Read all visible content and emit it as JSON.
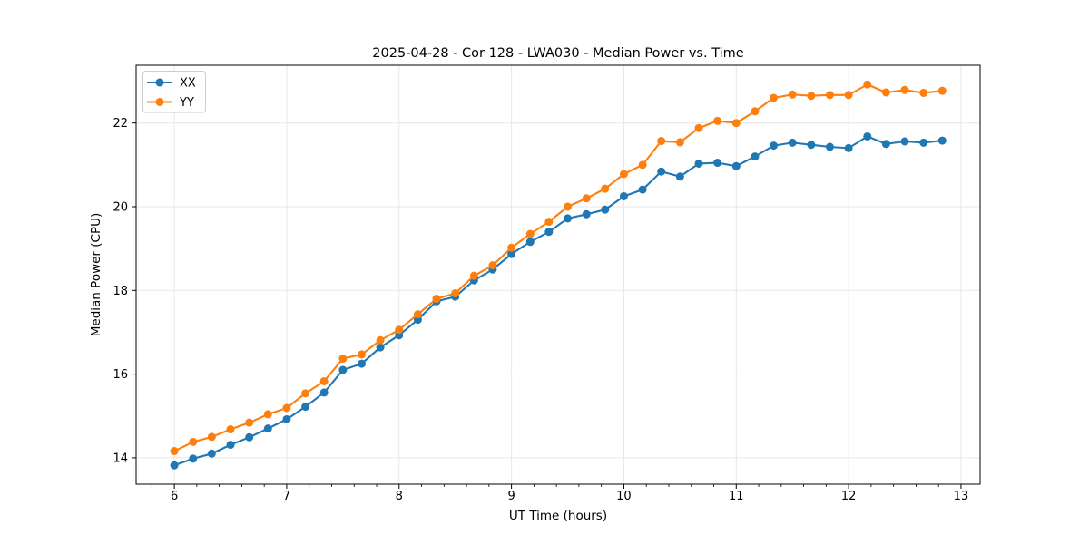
{
  "window": {
    "title": "2025-04-28 - Cor 128 - LWA030 - Median Power vs. Time"
  },
  "colors": {
    "series_xx": "#1f77b4",
    "series_yy": "#ff7f0e",
    "grid": "#e7e7e7",
    "axis": "#000000",
    "background": "#ffffff",
    "legend_border": "#cccccc"
  },
  "chart_data": {
    "type": "line",
    "title": "2025-04-28 - Cor 128 - LWA030 - Median Power vs. Time",
    "xlabel": "UT Time (hours)",
    "ylabel": "Median Power (CPU)",
    "xlim": [
      5.66,
      13.17
    ],
    "ylim": [
      13.37,
      23.38
    ],
    "xticks": [
      6,
      7,
      8,
      9,
      10,
      11,
      12,
      13
    ],
    "yticks": [
      14,
      16,
      18,
      20,
      22
    ],
    "x_minor_step": 0.2,
    "grid": true,
    "legend_position": "upper-left",
    "marker": "circle",
    "x": [
      6.0,
      6.167,
      6.333,
      6.5,
      6.667,
      6.833,
      7.0,
      7.167,
      7.333,
      7.5,
      7.667,
      7.833,
      8.0,
      8.167,
      8.333,
      8.5,
      8.667,
      8.833,
      9.0,
      9.167,
      9.333,
      9.5,
      9.667,
      9.833,
      10.0,
      10.167,
      10.333,
      10.5,
      10.667,
      10.833,
      11.0,
      11.167,
      11.333,
      11.5,
      11.667,
      11.833,
      12.0,
      12.167,
      12.333,
      12.5,
      12.667,
      12.833
    ],
    "series": [
      {
        "name": "XX",
        "color": "#1f77b4",
        "values": [
          13.82,
          13.98,
          14.1,
          14.31,
          14.49,
          14.7,
          14.92,
          15.22,
          15.56,
          16.1,
          16.25,
          16.64,
          16.93,
          17.3,
          17.74,
          17.85,
          18.24,
          18.5,
          18.87,
          19.16,
          19.4,
          19.72,
          19.82,
          19.93,
          20.25,
          20.41,
          20.84,
          20.72,
          21.03,
          21.05,
          20.97,
          21.2,
          21.46,
          21.53,
          21.48,
          21.43,
          21.4,
          21.68,
          21.5,
          21.56,
          21.53,
          21.58
        ]
      },
      {
        "name": "YY",
        "color": "#ff7f0e",
        "values": [
          14.16,
          14.38,
          14.5,
          14.68,
          14.84,
          15.04,
          15.19,
          15.54,
          15.83,
          16.37,
          16.47,
          16.81,
          17.06,
          17.43,
          17.8,
          17.93,
          18.35,
          18.6,
          19.02,
          19.35,
          19.64,
          20.0,
          20.2,
          20.43,
          20.78,
          21.0,
          21.57,
          21.54,
          21.88,
          22.05,
          22.0,
          22.28,
          22.6,
          22.68,
          22.65,
          22.67,
          22.67,
          22.92,
          22.73,
          22.79,
          22.72,
          22.77
        ]
      }
    ]
  }
}
